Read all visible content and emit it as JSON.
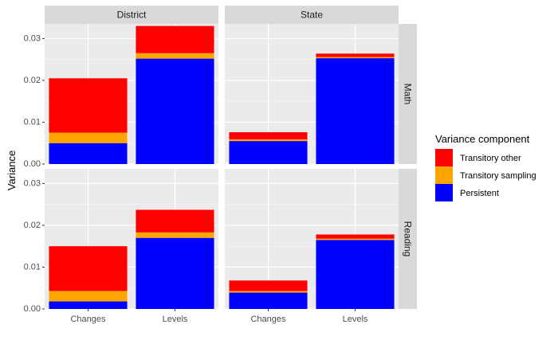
{
  "chart_data": {
    "type": "bar",
    "stacked": true,
    "ylabel": "Variance",
    "ylim": [
      0,
      0.0335
    ],
    "yticks": [
      0.0,
      0.01,
      0.02,
      0.03
    ],
    "ytick_labels": [
      "0.00",
      "0.01",
      "0.02",
      "0.03"
    ],
    "categories": [
      "Changes",
      "Levels"
    ],
    "facet_columns": [
      "District",
      "State"
    ],
    "facet_rows": [
      "Math",
      "Reading"
    ],
    "grid": true,
    "legend_position": "right",
    "legend": {
      "title": "Variance component",
      "items": [
        {
          "label": "Transitory other",
          "color": "#ff0000"
        },
        {
          "label": "Transitory sampling",
          "color": "#ffa500"
        },
        {
          "label": "Persistent",
          "color": "#0000ff"
        }
      ]
    },
    "panels": [
      {
        "column": "District",
        "row": "Math",
        "series": [
          {
            "name": "Persistent",
            "values": [
              0.005,
              0.0252
            ]
          },
          {
            "name": "Transitory sampling",
            "values": [
              0.0025,
              0.0013
            ]
          },
          {
            "name": "Transitory other",
            "values": [
              0.013,
              0.0065
            ]
          }
        ]
      },
      {
        "column": "State",
        "row": "Math",
        "series": [
          {
            "name": "Persistent",
            "values": [
              0.0055,
              0.0253
            ]
          },
          {
            "name": "Transitory sampling",
            "values": [
              0.0004,
              0.0003
            ]
          },
          {
            "name": "Transitory other",
            "values": [
              0.0017,
              0.0008
            ]
          }
        ]
      },
      {
        "column": "District",
        "row": "Reading",
        "series": [
          {
            "name": "Persistent",
            "values": [
              0.0018,
              0.017
            ]
          },
          {
            "name": "Transitory sampling",
            "values": [
              0.0025,
              0.0013
            ]
          },
          {
            "name": "Transitory other",
            "values": [
              0.0107,
              0.0054
            ]
          }
        ]
      },
      {
        "column": "State",
        "row": "Reading",
        "series": [
          {
            "name": "Persistent",
            "values": [
              0.0039,
              0.0165
            ]
          },
          {
            "name": "Transitory sampling",
            "values": [
              0.0004,
              0.0003
            ]
          },
          {
            "name": "Transitory other",
            "values": [
              0.0025,
              0.001
            ]
          }
        ]
      }
    ]
  }
}
